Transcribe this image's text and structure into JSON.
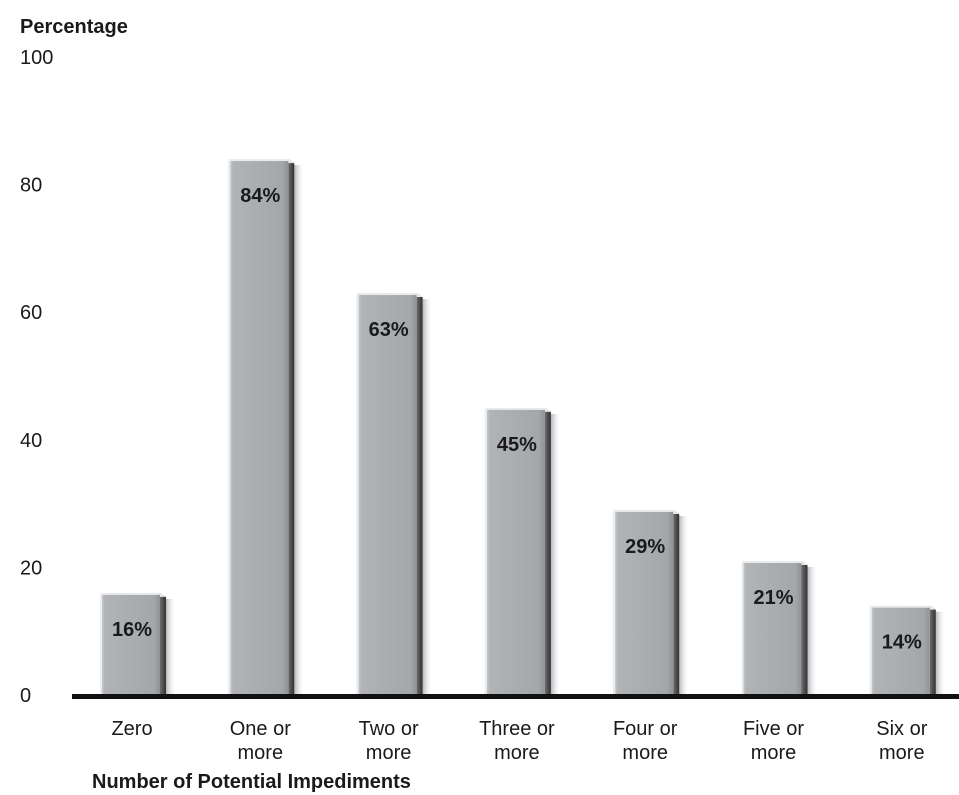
{
  "chart_data": {
    "type": "bar",
    "ylabel": "Percentage",
    "xlabel": "Number of Potential Impediments",
    "ylim": [
      0,
      100
    ],
    "yticks": [
      0,
      20,
      40,
      60,
      80,
      100
    ],
    "grid": false,
    "categories": [
      [
        "Zero"
      ],
      [
        "One or",
        "more"
      ],
      [
        "Two or",
        "more"
      ],
      [
        "Three or",
        "more"
      ],
      [
        "Four or",
        "more"
      ],
      [
        "Five or",
        "more"
      ],
      [
        "Six or",
        "more"
      ]
    ],
    "values": [
      16,
      84,
      63,
      45,
      29,
      21,
      14
    ],
    "data_labels": [
      "16%",
      "84%",
      "63%",
      "45%",
      "29%",
      "21%",
      "14%"
    ],
    "colors": {
      "bar_face": "#a8abae",
      "bar_highlight": "#e6e7e8",
      "bar_shadow": "#5b5d60",
      "baseline": "#111111"
    }
  }
}
